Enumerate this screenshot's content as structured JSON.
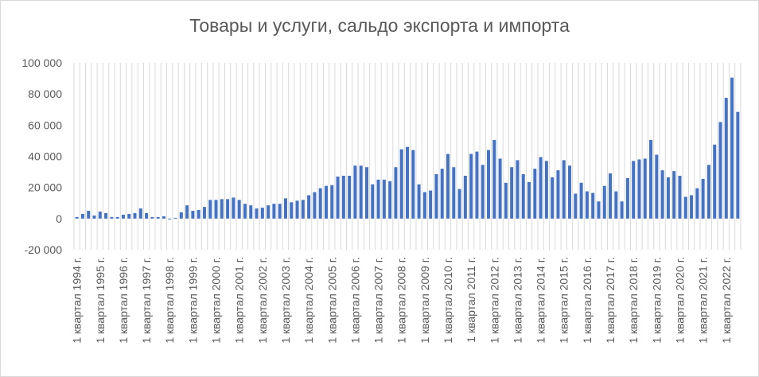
{
  "chart_data": {
    "type": "bar",
    "title": "Товары и услуги, сальдо экспорта и импорта",
    "xlabel": "",
    "ylabel": "",
    "ylim": [
      -20000,
      100000
    ],
    "yticks": [
      -20000,
      0,
      20000,
      40000,
      60000,
      80000,
      100000
    ],
    "ytick_labels": [
      "-20 000",
      "0",
      "20 000",
      "40 000",
      "60 000",
      "80 000",
      "100 000"
    ],
    "grid": "vertical",
    "legend": "none",
    "bar_color": "#4472c4",
    "grid_color": "#d9d9d9",
    "xtick_labels": [
      "1 квартал 1994 г.",
      "1 квартал 1995 г.",
      "1 квартал 1996 г.",
      "1 квартал 1997 г.",
      "1 квартал 1998 г.",
      "1 квартал 1999 г.",
      "1 квартал 2000 г.",
      "1 квартал 2001 г.",
      "1 квартал 2002 г.",
      "1 квартал 2003 г.",
      "1 квартал 2004 г.",
      "1 квартал 2005 г.",
      "1 квартал 2006 г.",
      "1 квартал 2007 г.",
      "1 квартал 2008 г.",
      "1 квартал 2009 г.",
      "1 квартал 2010 г.",
      "1 квартал 2011 г.",
      "1 квартал 2012 г.",
      "1 квартал 2013 г.",
      "1 квартал 2014 г.",
      "1 квартал 2015 г.",
      "1 квартал 2016 г.",
      "1 квартал 2017 г.",
      "1 квартал 2018 г.",
      "1 квартал 2019 г.",
      "1 квартал 2020 г.",
      "1 квартал 2021 г.",
      "1 квартал 2022 г."
    ],
    "values": [
      1000,
      3000,
      5000,
      2000,
      4500,
      3500,
      1000,
      1000,
      2500,
      3000,
      3500,
      6500,
      3500,
      1000,
      1000,
      1500,
      -500,
      500,
      4000,
      8500,
      5000,
      5500,
      7500,
      12000,
      12000,
      12500,
      12500,
      13500,
      12000,
      9500,
      8500,
      6500,
      7000,
      8500,
      9500,
      9500,
      13000,
      10500,
      11500,
      12000,
      15000,
      17000,
      19500,
      21000,
      21500,
      27000,
      27500,
      27500,
      34000,
      34000,
      33000,
      22000,
      25000,
      25000,
      24000,
      33000,
      44500,
      46000,
      44000,
      22000,
      17000,
      18000,
      28500,
      32000,
      41500,
      33000,
      19000,
      27500,
      41500,
      43000,
      34500,
      44000,
      50500,
      38500,
      23000,
      33000,
      37500,
      28500,
      23500,
      32000,
      39500,
      37000,
      26500,
      31000,
      37500,
      34000,
      16000,
      23000,
      17500,
      16500,
      11000,
      21000,
      29000,
      17500,
      11000,
      26000,
      37000,
      38000,
      38500,
      50500,
      41000,
      31000,
      26500,
      30500,
      27500,
      14000,
      15000,
      19500,
      25500,
      34500,
      47500,
      62000,
      77500,
      90500,
      68500
    ]
  }
}
